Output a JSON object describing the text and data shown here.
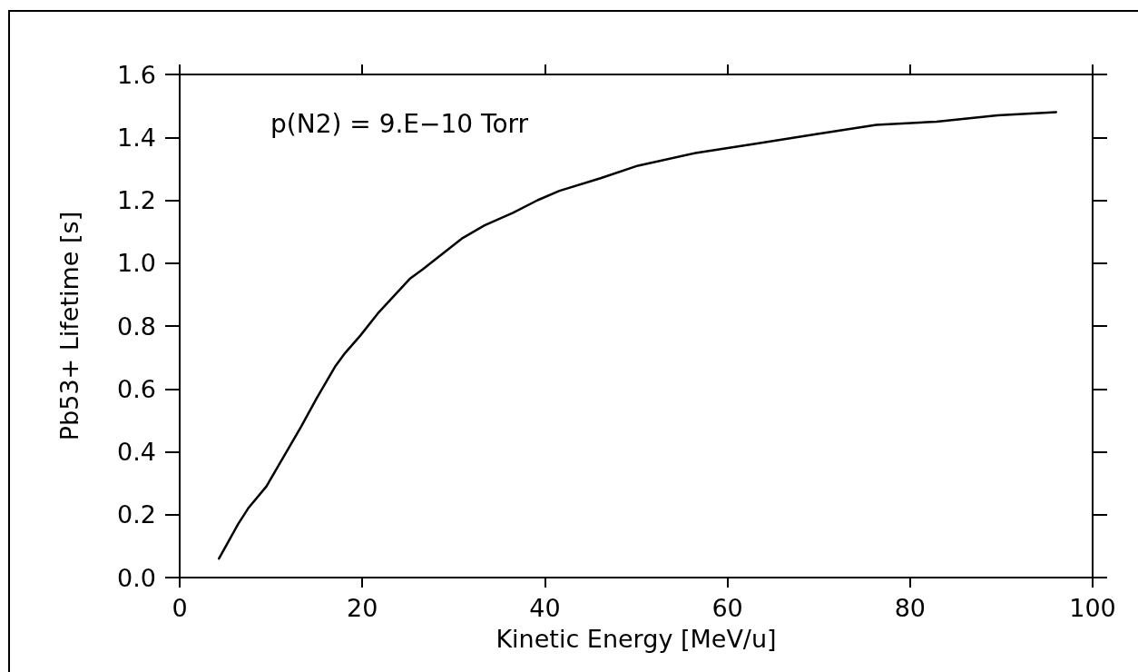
{
  "chart_data": {
    "type": "line",
    "xlabel": "Kinetic Energy [MeV/u]",
    "ylabel": "Pb53+ Lifetime [s]",
    "annotations": [
      "p(N2) = 9.E−10 Torr"
    ],
    "x": [
      4.3,
      6.4,
      7.5,
      9.5,
      11.9,
      13.3,
      15.0,
      17.0,
      18.0,
      19.8,
      21.7,
      25.2,
      26.6,
      31.0,
      33.4,
      36.5,
      39.2,
      41.6,
      46.1,
      50.2,
      56.5,
      63.1,
      69.7,
      76.3,
      82.9,
      89.6,
      96.0
    ],
    "series": [
      {
        "color": "#000000",
        "values": [
          0.06,
          0.17,
          0.22,
          0.29,
          0.41,
          0.48,
          0.57,
          0.67,
          0.71,
          0.77,
          0.84,
          0.95,
          0.98,
          1.08,
          1.12,
          1.16,
          1.2,
          1.23,
          1.27,
          1.31,
          1.35,
          1.38,
          1.41,
          1.44,
          1.45,
          1.47,
          1.48
        ]
      }
    ],
    "xlim": [
      0,
      100
    ],
    "xticks": [
      0,
      20,
      40,
      60,
      80,
      100
    ],
    "ylim": [
      0,
      1.6
    ],
    "yticks": [
      {
        "value": 0,
        "label": "0.0"
      },
      0.2,
      0.4,
      0.6,
      0.8,
      {
        "value": 1,
        "label": "1.0"
      },
      1.2,
      1.4,
      1.6
    ]
  }
}
